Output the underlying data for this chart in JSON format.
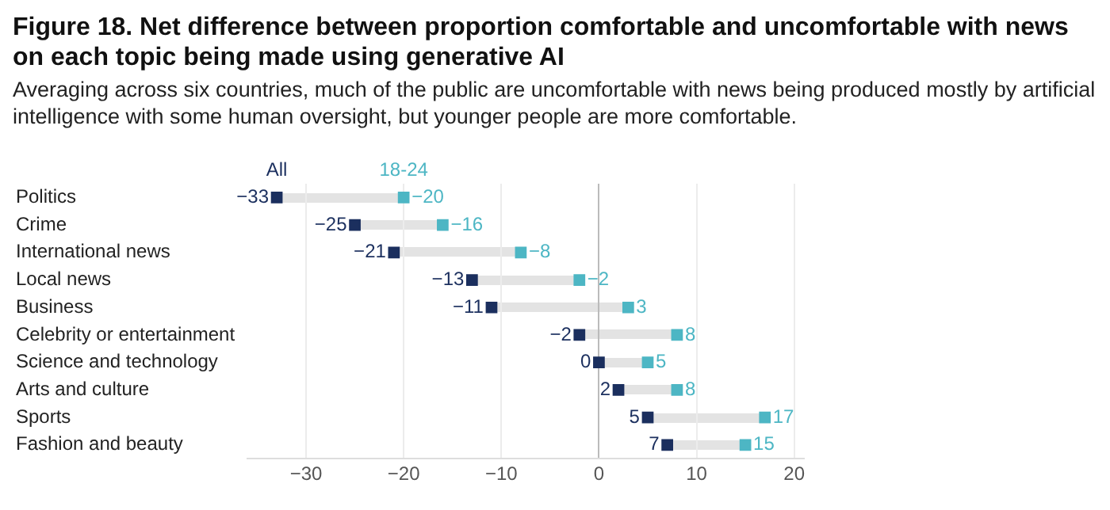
{
  "chart_data": {
    "type": "scatter",
    "title": "Figure 18. Net difference between proportion comfortable and uncomfortable with news on each topic being made using generative AI",
    "subtitle": "Averaging across six countries, much of the public are uncomfortable with news being produced mostly by artificial intelligence with some human oversight, but younger people are more comfortable.",
    "orientation": "horizontal",
    "categories": [
      "Politics",
      "Crime",
      "International news",
      "Local news",
      "Business",
      "Celebrity or entertainment",
      "Science and technology",
      "Arts and culture",
      "Sports",
      "Fashion and beauty"
    ],
    "series": [
      {
        "name": "All",
        "color": "#1b2f5e",
        "values": [
          -33,
          -25,
          -21,
          -13,
          -11,
          -2,
          0,
          2,
          5,
          7
        ]
      },
      {
        "name": "18-24",
        "color": "#4db6c4",
        "values": [
          -20,
          -16,
          -8,
          -2,
          3,
          8,
          5,
          8,
          17,
          15
        ]
      }
    ],
    "xlim": [
      -36,
      21
    ],
    "xticks": [
      {
        "value": -30,
        "label": "−30"
      },
      {
        "value": -20,
        "label": "−20"
      },
      {
        "value": -10,
        "label": "−10"
      },
      0,
      10,
      20
    ],
    "grid": "x",
    "marker": "square",
    "legend": false,
    "data_labels": true
  }
}
